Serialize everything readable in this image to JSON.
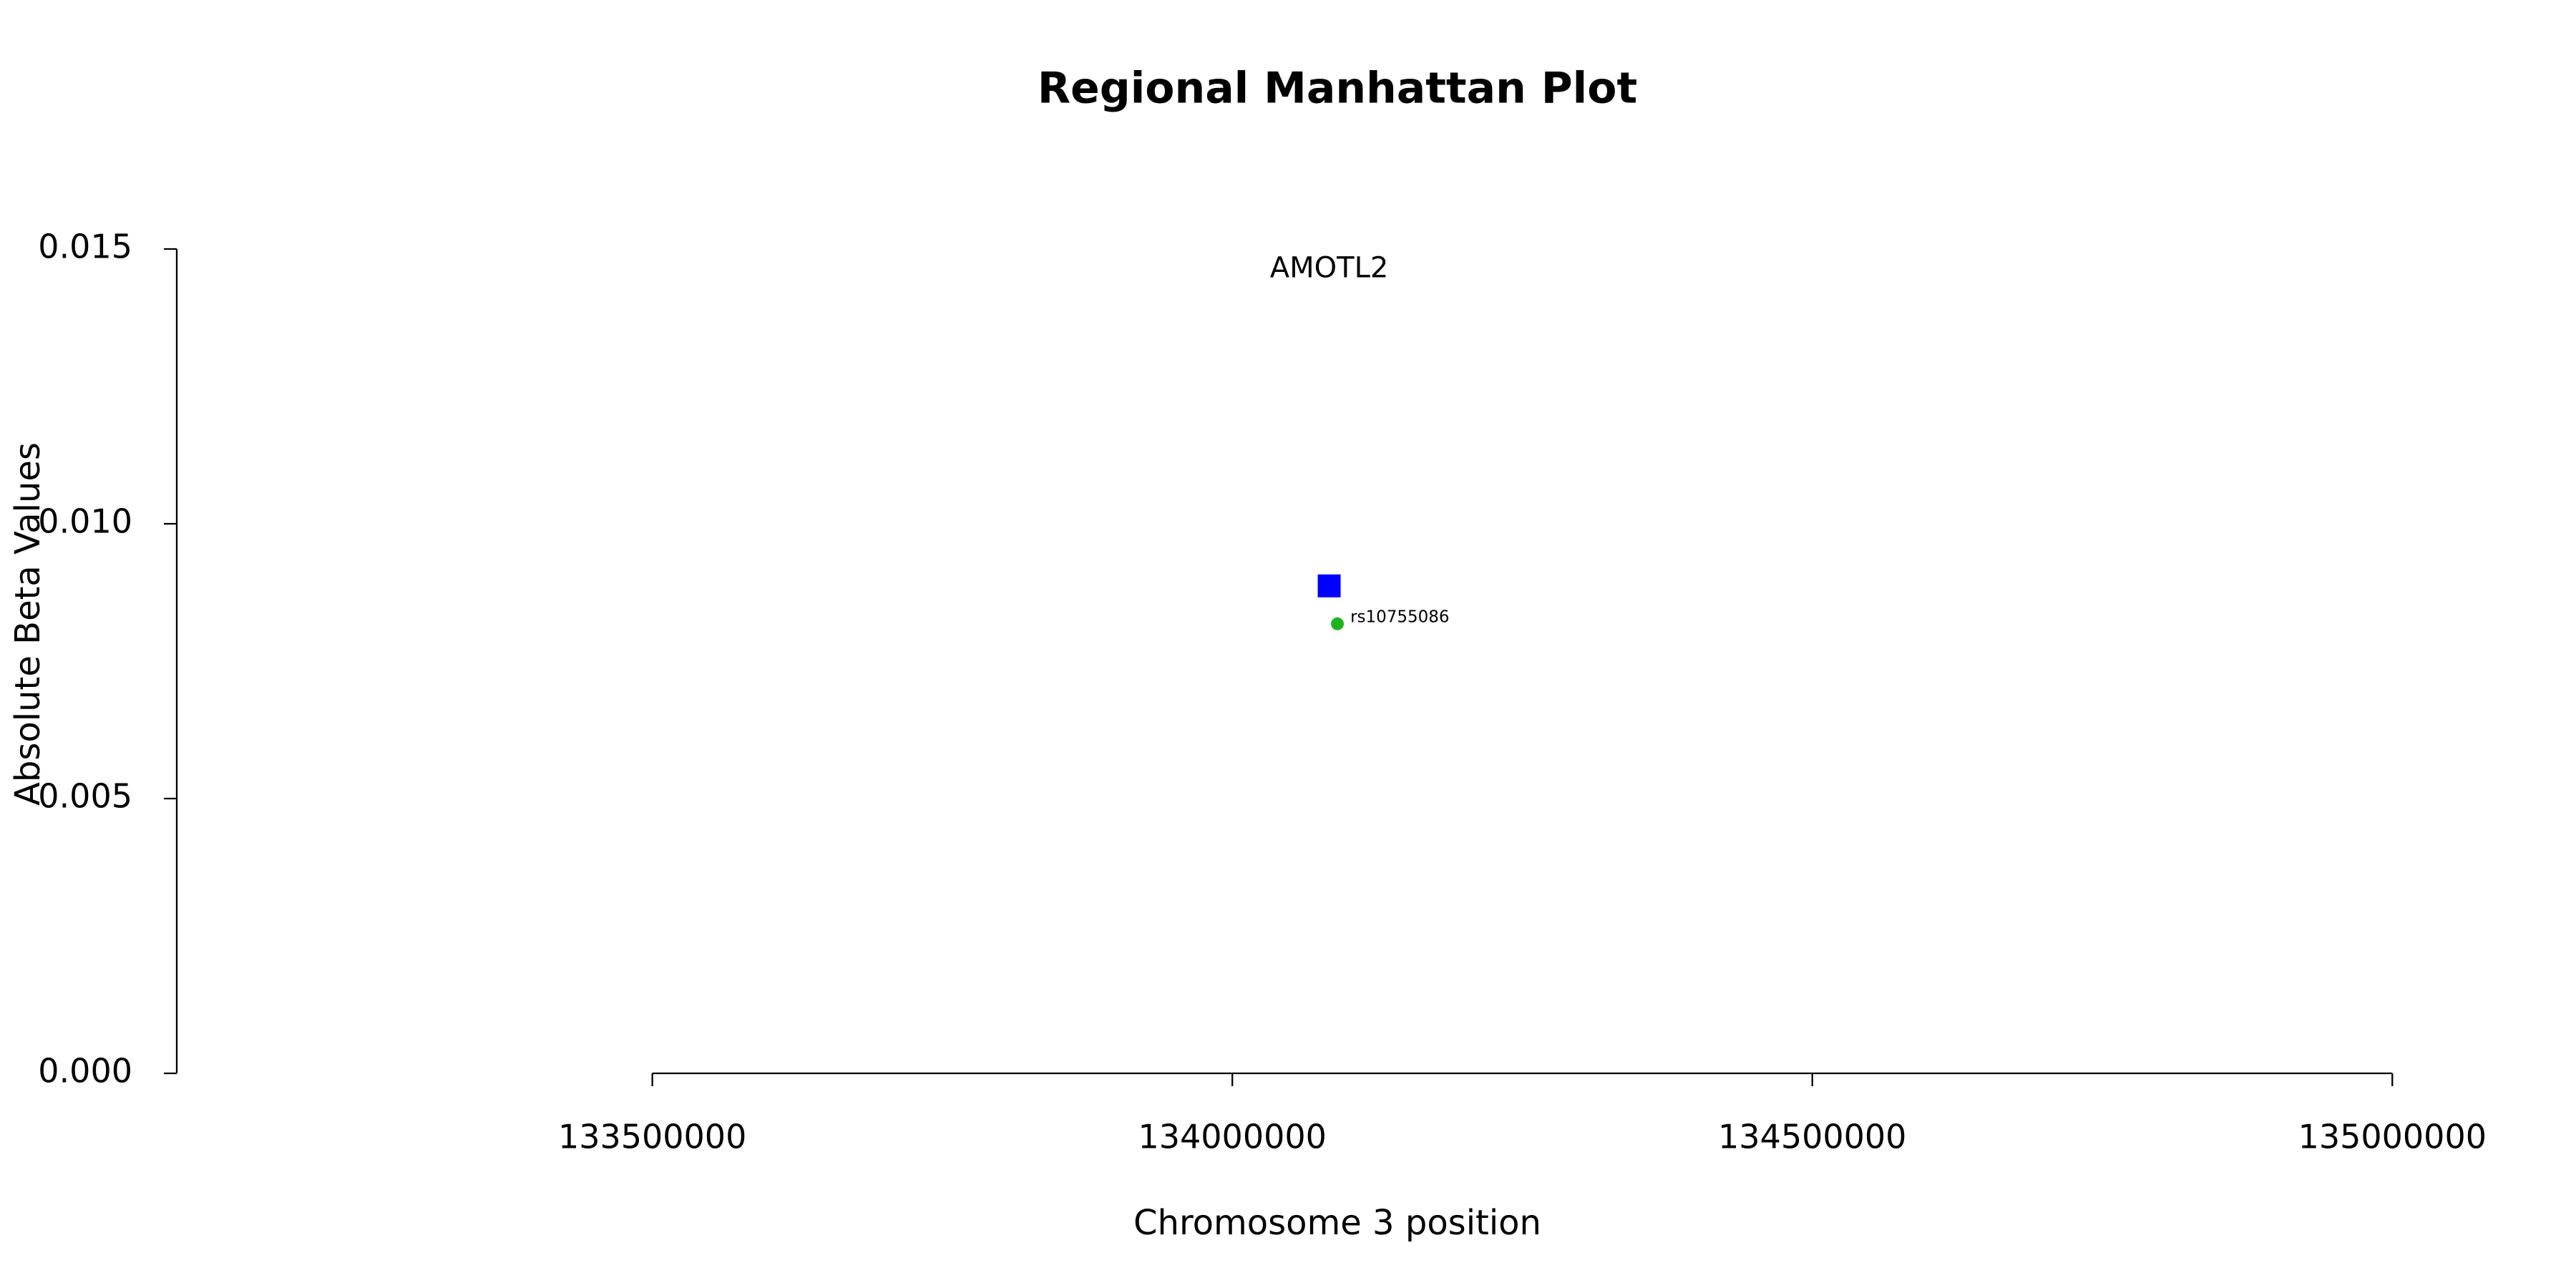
{
  "chart_data": {
    "type": "scatter",
    "title": "Regional Manhattan Plot",
    "x_label": "Chromosome 3 position",
    "y_label": "Absolute Beta Values",
    "xlim": [
      133090000,
      135072000
    ],
    "xticks": [
      133500000,
      134000000,
      134500000,
      135000000
    ],
    "ylim": [
      0,
      0.015
    ],
    "yticks": [
      {
        "value": 0,
        "label": "0.000"
      },
      0.005,
      {
        "value": 0.01,
        "label": "0.010"
      },
      0.015
    ],
    "series": [
      {
        "color": "#0000ff",
        "marker": "square",
        "x": [
          134083500
        ],
        "values": [
          0.00887
        ]
      },
      {
        "color": "#1fb21f",
        "marker": "circle",
        "x": [
          134090600
        ],
        "values": [
          0.00818
        ],
        "labels": [
          "rs10755086"
        ]
      }
    ],
    "annotations": [
      {
        "text": "AMOTL2",
        "x": 134083500,
        "y": 0.01463
      }
    ]
  }
}
